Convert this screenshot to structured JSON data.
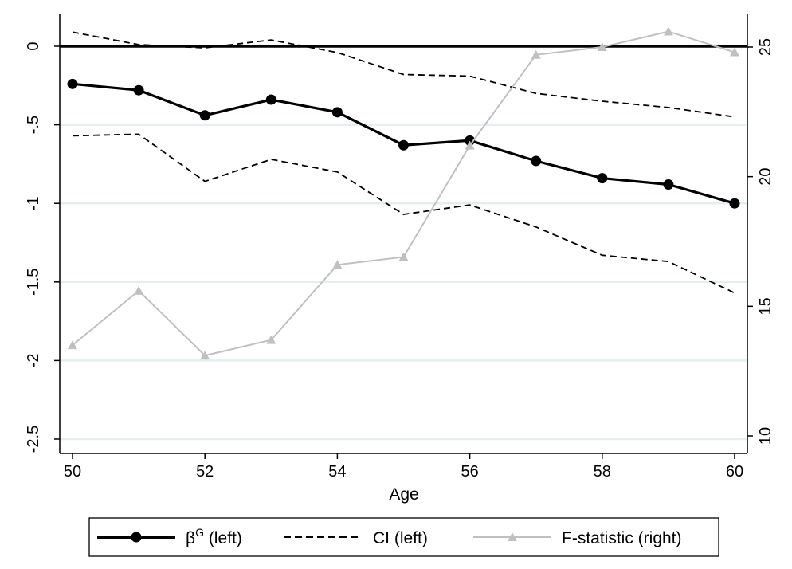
{
  "chart_data": {
    "type": "line",
    "x": [
      50,
      51,
      52,
      53,
      54,
      55,
      56,
      57,
      58,
      59,
      60
    ],
    "xlabel": "Age",
    "xticks": [
      50,
      52,
      54,
      56,
      58,
      60
    ],
    "xlim": [
      50,
      60
    ],
    "left_axis": {
      "ylim": [
        -2.5,
        0.2
      ],
      "ticks": [
        0,
        -0.5,
        -1,
        -1.5,
        -2,
        -2.5
      ],
      "tick_labels": [
        "0",
        "-.5",
        "-1",
        "-1.5",
        "-2",
        "-2.5"
      ]
    },
    "right_axis": {
      "ylim": [
        10,
        26
      ],
      "ticks": [
        10,
        15,
        20,
        25
      ],
      "tick_labels": [
        "10",
        "15",
        "20",
        "25"
      ]
    },
    "reference_line_y": 0,
    "series": [
      {
        "name": "β^G (left)",
        "axis": "left",
        "style": "solid-thick-circle",
        "color": "#000000",
        "values": [
          -0.24,
          -0.28,
          -0.44,
          -0.34,
          -0.42,
          -0.63,
          -0.6,
          -0.73,
          -0.84,
          -0.88,
          -1.0
        ]
      },
      {
        "name": "CI (left)",
        "axis": "left",
        "style": "dashed",
        "color": "#000000",
        "values": [
          0.09,
          0.01,
          -0.01,
          0.04,
          -0.04,
          -0.18,
          -0.19,
          -0.3,
          -0.35,
          -0.39,
          -0.45
        ]
      },
      {
        "name": "CI (left)",
        "axis": "left",
        "style": "dashed",
        "color": "#000000",
        "values": [
          -0.57,
          -0.56,
          -0.86,
          -0.72,
          -0.8,
          -1.07,
          -1.01,
          -1.15,
          -1.33,
          -1.37,
          -1.57
        ]
      },
      {
        "name": "F-statistic (right)",
        "axis": "right",
        "style": "solid-thin-triangle",
        "color": "#c0c0c0",
        "values": [
          13.5,
          15.6,
          13.1,
          13.7,
          16.6,
          16.9,
          21.2,
          24.7,
          25.0,
          25.6,
          24.8
        ]
      }
    ],
    "legend": {
      "placement": "bottom",
      "entries": [
        {
          "label_main": "β",
          "label_sup": "G",
          "label_rest": " (left)",
          "style": "solid-thick-circle",
          "color": "#000000"
        },
        {
          "label_main": "CI (left)",
          "label_sup": "",
          "label_rest": "",
          "style": "dashed",
          "color": "#000000"
        },
        {
          "label_main": "F-statistic (right)",
          "label_sup": "",
          "label_rest": "",
          "style": "solid-thin-triangle",
          "color": "#c0c0c0"
        }
      ]
    },
    "grid": true,
    "grid_color": "#e3efef"
  }
}
